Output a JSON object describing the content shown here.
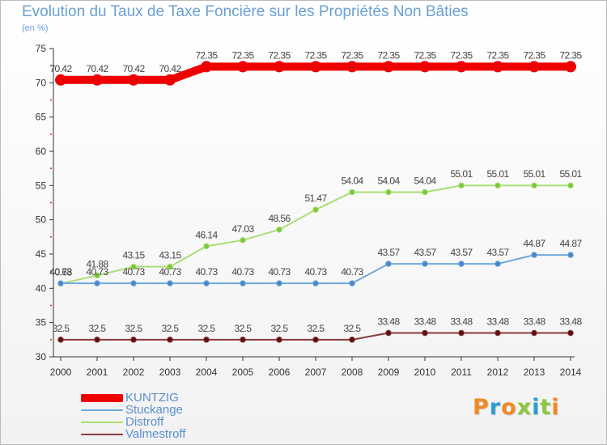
{
  "title": "Evolution du Taux de Taxe Foncière sur les Propriétés Non Bâties",
  "subtitle": "(en %)",
  "logo": {
    "text": "Proxiti",
    "colors": [
      "#f08a24",
      "#2a9fd6",
      "#f08a24",
      "#8cc63f",
      "#2a9fd6",
      "#8cc63f",
      "#f08a24"
    ]
  },
  "chart_data": {
    "type": "line",
    "title": "Evolution du Taux de Taxe Foncière sur les Propriétés Non Bâties",
    "ylabel": "(en %)",
    "xlabel": "",
    "x": [
      "2000",
      "2001",
      "2002",
      "2003",
      "2004",
      "2005",
      "2006",
      "2007",
      "2008",
      "2009",
      "2010",
      "2011",
      "2012",
      "2013",
      "2014"
    ],
    "ylim": [
      30,
      75
    ],
    "yticks": [
      "30",
      "35",
      "40",
      "45",
      "50",
      "55",
      "60",
      "65",
      "70",
      "75"
    ],
    "grid": false,
    "legend_position": "bottom-left",
    "series": [
      {
        "name": "KUNTZIG",
        "color": "#ee0000",
        "emphasis": true,
        "values": [
          70.42,
          70.42,
          70.42,
          70.42,
          72.35,
          72.35,
          72.35,
          72.35,
          72.35,
          72.35,
          72.35,
          72.35,
          72.35,
          72.35,
          72.35
        ],
        "labels": [
          "70.42",
          "70.42",
          "70.42",
          "70.42",
          "72.35",
          "72.35",
          "72.35",
          "72.35",
          "72.35",
          "72.35",
          "72.35",
          "72.35",
          "72.35",
          "72.35",
          "72.35"
        ]
      },
      {
        "name": "Stuckange",
        "color": "#6fa8dc",
        "marker": "#4a86c8",
        "values": [
          40.73,
          40.73,
          40.73,
          40.73,
          40.73,
          40.73,
          40.73,
          40.73,
          40.73,
          43.57,
          43.57,
          43.57,
          43.57,
          44.87,
          44.87
        ],
        "labels": [
          "40.73",
          "40.73",
          "40.73",
          "40.73",
          "40.73",
          "40.73",
          "40.73",
          "40.73",
          "40.73",
          "43.57",
          "43.57",
          "43.57",
          "43.57",
          "44.87",
          "44.87"
        ]
      },
      {
        "name": "Distroff",
        "color": "#a8df72",
        "marker": "#7cc83a",
        "values": [
          40.68,
          41.88,
          43.15,
          43.15,
          46.14,
          47.03,
          48.56,
          51.47,
          54.04,
          54.04,
          54.04,
          55.01,
          55.01,
          55.01,
          55.01
        ],
        "labels": [
          "40.68",
          "41.88",
          "43.15",
          "43.15",
          "46.14",
          "47.03",
          "48.56",
          "51.47",
          "54.04",
          "54.04",
          "54.04",
          "55.01",
          "55.01",
          "55.01",
          "55.01"
        ]
      },
      {
        "name": "Valmestroff",
        "color": "#8b3a3a",
        "marker": "#5a1010",
        "values": [
          32.5,
          32.5,
          32.5,
          32.5,
          32.5,
          32.5,
          32.5,
          32.5,
          32.5,
          33.48,
          33.48,
          33.48,
          33.48,
          33.48,
          33.48
        ],
        "labels": [
          "32.5",
          "32.5",
          "32.5",
          "32.5",
          "32.5",
          "32.5",
          "32.5",
          "32.5",
          "32.5",
          "33.48",
          "33.48",
          "33.48",
          "33.48",
          "33.48",
          "33.48"
        ]
      }
    ]
  }
}
